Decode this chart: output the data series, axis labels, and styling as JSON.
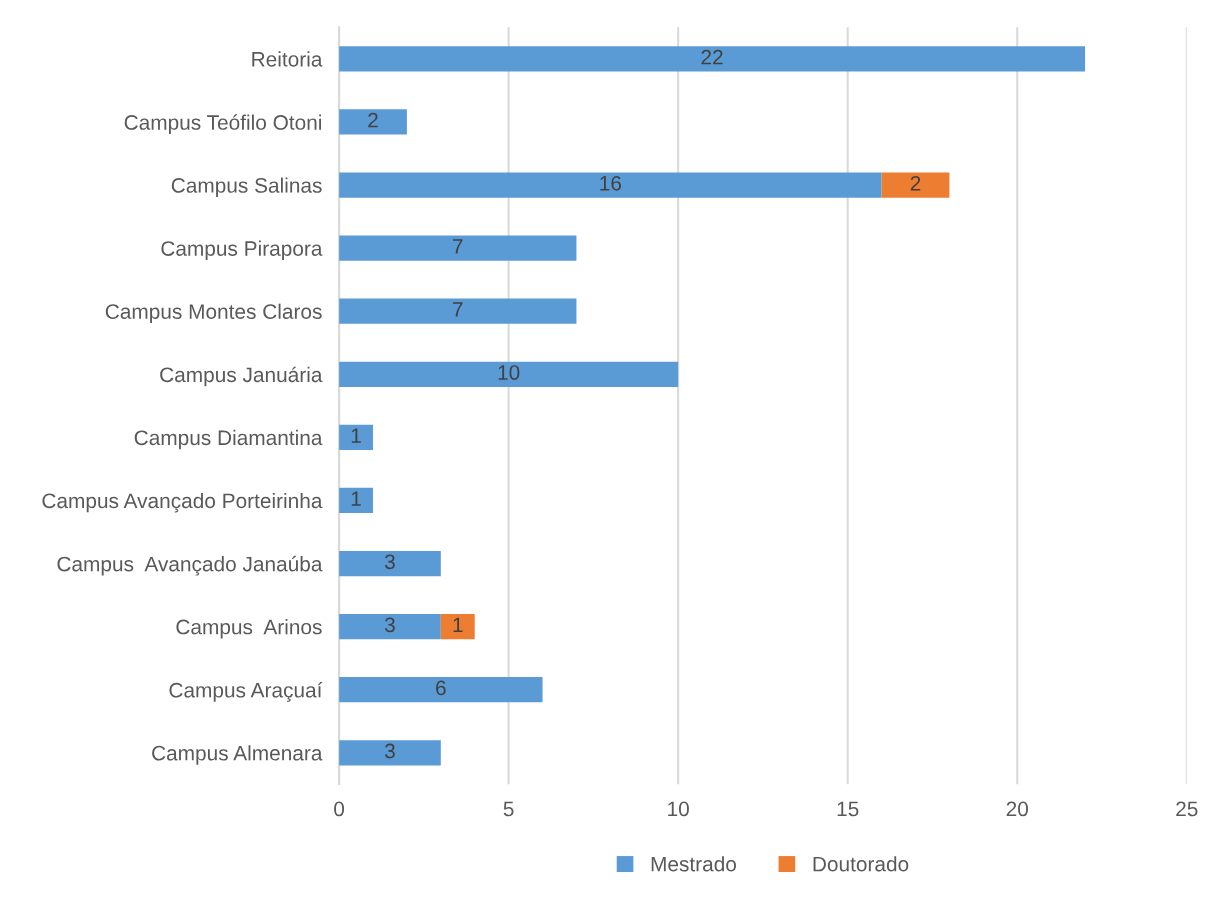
{
  "chart_data": {
    "type": "bar",
    "orientation": "horizontal",
    "stacked": true,
    "categories": [
      "Reitoria",
      "Campus Teófilo Otoni",
      "Campus Salinas",
      "Campus Pirapora",
      "Campus Montes Claros",
      "Campus Januária",
      "Campus Diamantina",
      "Campus Avançado Porteirinha",
      "Campus  Avançado Janaúba",
      "Campus  Arinos",
      "Campus Araçuaí",
      "Campus Almenara"
    ],
    "series": [
      {
        "name": "Mestrado",
        "color": "#5b9bd5",
        "values": [
          22,
          2,
          16,
          7,
          7,
          10,
          1,
          1,
          3,
          3,
          6,
          3
        ]
      },
      {
        "name": "Doutorado",
        "color": "#ed7d31",
        "values": [
          null,
          null,
          2,
          null,
          null,
          null,
          null,
          null,
          null,
          1,
          null,
          null
        ]
      }
    ],
    "xlim": [
      0,
      25
    ],
    "xticks": [
      0,
      5,
      10,
      15,
      20,
      25
    ],
    "grid": "x",
    "legend": "bottom",
    "data_labels": true
  }
}
